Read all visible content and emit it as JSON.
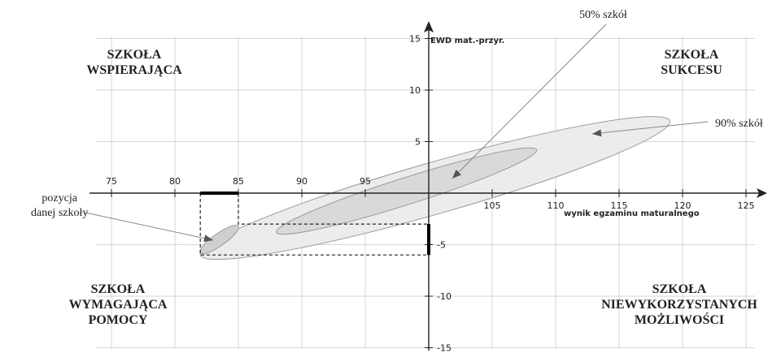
{
  "chart_data": {
    "type": "scatter",
    "xlabel": "wynik egzaminu maturalnego",
    "ylabel": "EWD mat.-przyr.",
    "xlim": [
      75,
      125
    ],
    "ylim": [
      -15,
      15
    ],
    "x_ticks": [
      75,
      80,
      85,
      90,
      95,
      105,
      110,
      115,
      120,
      125
    ],
    "y_ticks": [
      15,
      10,
      5,
      -5,
      -10,
      -15
    ],
    "grid": true,
    "ellipses": [
      {
        "label": "90% szkół",
        "center": [
          100.5,
          0.5
        ],
        "endpoints": [
          [
            82,
            -6
          ],
          [
            119,
            7
          ]
        ],
        "minor_half_width": 2.5
      },
      {
        "label": "50% szkół",
        "center": [
          98,
          0
        ],
        "endpoints": [
          [
            88,
            -3.8
          ],
          [
            108.5,
            4.2
          ]
        ],
        "minor_half_width": 1.3
      },
      {
        "label": "pozycja danej szkoły",
        "center": [
          83.5,
          -4.5
        ],
        "endpoints": [
          [
            82,
            -5.8
          ],
          [
            85,
            -3.2
          ]
        ],
        "minor_half_width": 0.6
      }
    ],
    "school_position": {
      "x_range": [
        82,
        85
      ],
      "y_range": [
        -6,
        -3
      ]
    }
  },
  "quadrants": {
    "top_left": [
      "SZKOŁA",
      "WSPIERAJĄCA"
    ],
    "top_right": [
      "SZKOŁA",
      "SUKCESU"
    ],
    "bottom_left": [
      "SZKOŁA",
      "WYMAGAJĄCA",
      "POMOCY"
    ],
    "bottom_right": [
      "SZKOŁA",
      "NIEWYKORZYSTANYCH",
      "MOŻLIWOŚCI"
    ]
  },
  "annotations": {
    "fifty": "50% szkół",
    "ninety": "90% szkół",
    "position_line1": "pozycja",
    "position_line2": "danej szkoły"
  }
}
